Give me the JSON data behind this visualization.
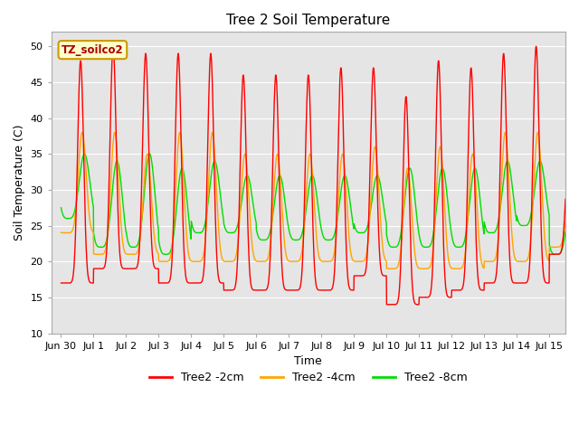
{
  "title": "Tree 2 Soil Temperature",
  "xlabel": "Time",
  "ylabel": "Soil Temperature (C)",
  "ylim": [
    10,
    52
  ],
  "yticks": [
    10,
    15,
    20,
    25,
    30,
    35,
    40,
    45,
    50
  ],
  "annotation_text": "TZ_soilco2",
  "annotation_color": "#aa0000",
  "annotation_bg": "#ffffcc",
  "annotation_border": "#cc9900",
  "bg_color": "#e5e5e5",
  "line_colors": {
    "2cm": "#ff0000",
    "4cm": "#ffa500",
    "8cm": "#00dd00"
  },
  "legend_labels": [
    "Tree2 -2cm",
    "Tree2 -4cm",
    "Tree2 -8cm"
  ],
  "legend_colors": [
    "#ff0000",
    "#ffa500",
    "#00dd00"
  ],
  "x_tick_labels": [
    "Jun 30",
    "Jul 1",
    "Jul 2",
    "Jul 3",
    "Jul 4",
    "Jul 5",
    "Jul 6",
    "Jul 7",
    "Jul 8",
    "Jul 9",
    "Jul 10",
    "Jul 11",
    "Jul 12",
    "Jul 13",
    "Jul 14",
    "Jul 15"
  ],
  "num_days": 15.5,
  "pts_per_day": 144
}
